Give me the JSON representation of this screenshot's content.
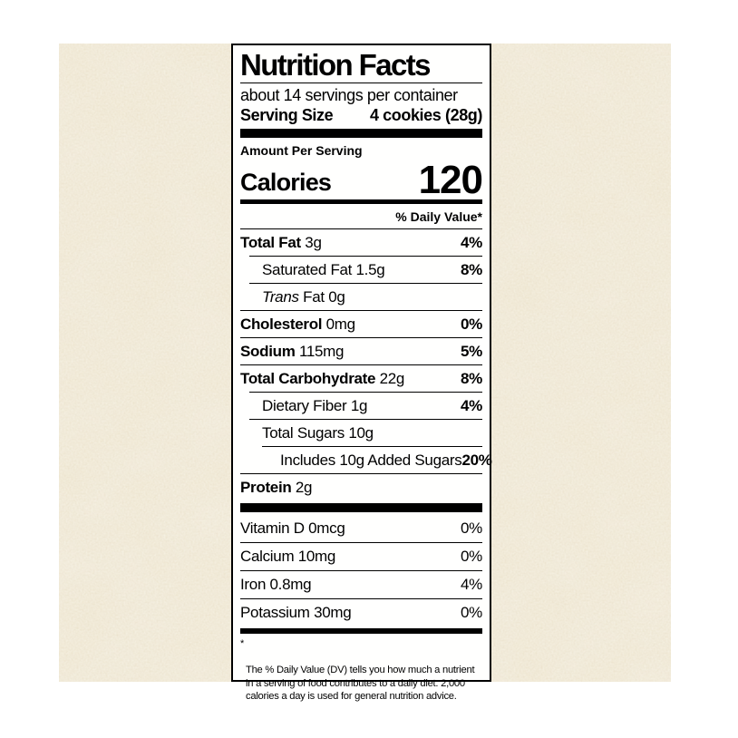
{
  "colors": {
    "page_background": "#ffffff",
    "parchment_base": "#ede5d2",
    "label_background": "#fffffe",
    "ink": "#000000"
  },
  "label": {
    "title": "Nutrition Facts",
    "servings_per_container": "about 14 servings per container",
    "serving_size_label": "Serving Size",
    "serving_size_value": "4 cookies (28g)",
    "amount_per_serving": "Amount Per Serving",
    "calories_label": "Calories",
    "calories_value": "120",
    "daily_value_header": "% Daily Value*",
    "nutrients": [
      {
        "strong": "Total Fat",
        "italic": "",
        "rest": "3g",
        "dv": "4%",
        "indent": 0
      },
      {
        "strong": "",
        "italic": "",
        "rest": "Saturated Fat 1.5g",
        "dv": "8%",
        "indent": 1
      },
      {
        "strong": "",
        "italic": "Trans",
        "rest": "Fat 0g",
        "dv": "",
        "indent": 1
      },
      {
        "strong": "Cholesterol",
        "italic": "",
        "rest": "0mg",
        "dv": "0%",
        "indent": 0
      },
      {
        "strong": "Sodium",
        "italic": "",
        "rest": "115mg",
        "dv": "5%",
        "indent": 0
      },
      {
        "strong": "Total Carbohydrate",
        "italic": "",
        "rest": "22g",
        "dv": "8%",
        "indent": 0
      },
      {
        "strong": "",
        "italic": "",
        "rest": "Dietary Fiber 1g",
        "dv": "4%",
        "indent": 1
      },
      {
        "strong": "",
        "italic": "",
        "rest": "Total Sugars 10g",
        "dv": "",
        "indent": 1
      },
      {
        "strong": "",
        "italic": "",
        "rest": "Includes 10g Added Sugars",
        "dv": "20%",
        "indent": 2
      },
      {
        "strong": "Protein",
        "italic": "",
        "rest": "2g",
        "dv": "",
        "indent": 0
      }
    ],
    "vitamins": [
      {
        "name": "Vitamin D 0mcg",
        "dv": "0%"
      },
      {
        "name": "Calcium 10mg",
        "dv": "0%"
      },
      {
        "name": "Iron 0.8mg",
        "dv": "4%"
      },
      {
        "name": "Potassium 30mg",
        "dv": "0%"
      }
    ],
    "footnote_symbol": "*",
    "footnote_lines": [
      "The % Daily Value (DV) tells you how much a nutrient",
      "in a serving of food contributes to a daily diet. 2,000",
      "calories a day is used for general nutrition advice."
    ]
  }
}
